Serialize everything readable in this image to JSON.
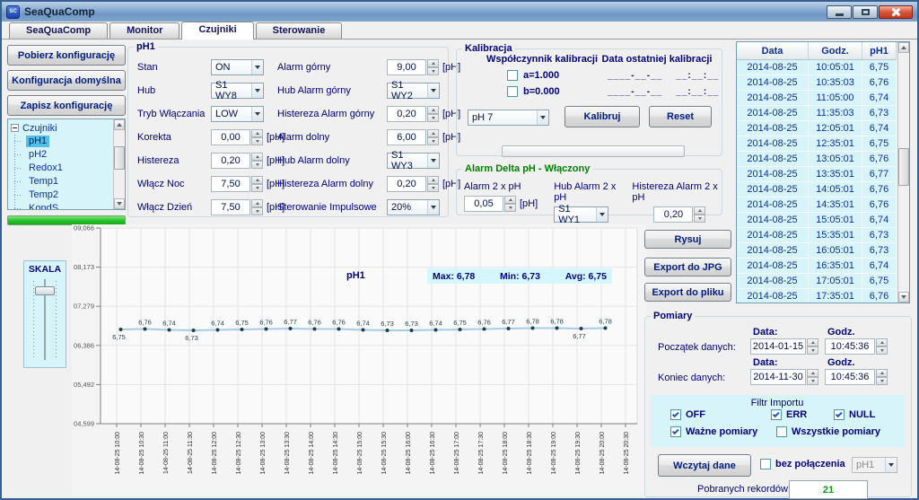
{
  "window": {
    "title": "SeaQuaComp"
  },
  "tabs": [
    {
      "label": "SeaQuaComp",
      "active": false
    },
    {
      "label": "Monitor",
      "active": false
    },
    {
      "label": "Czujniki",
      "active": true
    },
    {
      "label": "Sterowanie",
      "active": false
    }
  ],
  "sidebar": {
    "buttons": [
      {
        "label": "Pobierz konfigurację"
      },
      {
        "label": "Konfiguracja domyślna"
      },
      {
        "label": "Zapisz konfigurację"
      }
    ],
    "tree": {
      "root": "Czujniki",
      "items": [
        {
          "label": "pH1",
          "selected": true
        },
        {
          "label": "pH2",
          "selected": false
        },
        {
          "label": "Redox1",
          "selected": false
        },
        {
          "label": "Temp1",
          "selected": false
        },
        {
          "label": "Temp2",
          "selected": false
        },
        {
          "label": "KondS",
          "selected": false
        }
      ]
    }
  },
  "ph1": {
    "title": "pH1",
    "col1": [
      {
        "label": "Stan",
        "control": "select",
        "value": "ON"
      },
      {
        "label": "Hub",
        "control": "select",
        "value": "S1 WY8"
      },
      {
        "label": "Tryb Włączania",
        "control": "select",
        "value": "LOW"
      },
      {
        "label": "Korekta",
        "control": "spin",
        "value": "0,00",
        "unit": "[pH]"
      },
      {
        "label": "Histereza",
        "control": "spin",
        "value": "0,20",
        "unit": "[pH]"
      },
      {
        "label": "Włącz Noc",
        "control": "spin",
        "value": "7,50",
        "unit": "[pH]"
      },
      {
        "label": "Włącz Dzień",
        "control": "spin",
        "value": "7,50",
        "unit": "[pH]"
      }
    ],
    "col2": [
      {
        "label": "Alarm górny",
        "control": "spin",
        "value": "9,00",
        "unit": "[pH]"
      },
      {
        "label": "Hub Alarm górny",
        "control": "select",
        "value": "S1 WY2"
      },
      {
        "label": "Histereza Alarm górny",
        "control": "spin",
        "value": "0,20",
        "unit": "[pH]"
      },
      {
        "label": "Alarm dolny",
        "control": "spin",
        "value": "6,00",
        "unit": "[pH]"
      },
      {
        "label": "Hub Alarm dolny",
        "control": "select",
        "value": "S1 WY3"
      },
      {
        "label": "Histereza Alarm dolny",
        "control": "spin",
        "value": "0,20",
        "unit": "[pH]"
      },
      {
        "label": "Sterowanie Impulsowe",
        "control": "select",
        "value": "20%"
      }
    ]
  },
  "kalibracja": {
    "title": "Kalibracja",
    "coef_header": "Współczynnik kalibracji",
    "date_header": "Data ostatniej kalibracji",
    "coef_a": {
      "label": "a=1.000",
      "checked": false
    },
    "coef_b": {
      "label": "b=0.000",
      "checked": false
    },
    "date_placeholder_a": "____-__-__    __:__:__",
    "date_placeholder_b": "____-__-__    __:__:__",
    "buffer_value": "pH 7",
    "kalibruj_label": "Kalibruj",
    "reset_label": "Reset"
  },
  "delta": {
    "title": "Alarm Delta pH - Włączony",
    "fields": [
      {
        "label": "Alarm 2 x pH",
        "control": "spin",
        "value": "0,05",
        "unit": "[pH]"
      },
      {
        "label": "Hub Alarm 2 x pH",
        "control": "select",
        "value": "S1 WY1"
      },
      {
        "label": "Histereza Alarm 2 x pH",
        "control": "spin",
        "value": "0,20"
      }
    ]
  },
  "chart_buttons": [
    {
      "label": "Rysuj"
    },
    {
      "label": "Export do JPG"
    },
    {
      "label": "Export do pliku"
    }
  ],
  "skala_label": "SKALA",
  "chart_data": {
    "type": "line",
    "title": "pH1",
    "stats": [
      "Max: 6,78",
      "Min: 6,73",
      "Avg: 6,75"
    ],
    "y_ticks": [
      "09,066",
      "08,173",
      "07,279",
      "06,386",
      "05,492",
      "04,599"
    ],
    "y_max": 9.066,
    "y_min": 4.599,
    "grid": true,
    "x_ticks": [
      "14-08-25 10:00",
      "14-08-25 10:30",
      "14-08-25 11:00",
      "14-08-25 11:30",
      "14-08-25 12:00",
      "14-08-25 12:30",
      "14-08-25 13:00",
      "14-08-25 13:30",
      "14-08-25 14:00",
      "14-08-25 14:30",
      "14-08-25 15:00",
      "14-08-25 15:30",
      "14-08-25 16:00",
      "14-08-25 16:30",
      "14-08-25 17:00",
      "14-08-25 17:30",
      "14-08-25 18:00",
      "14-08-25 18:30",
      "14-08-25 19:00",
      "14-08-25 19:30",
      "14-08-25 20:00",
      "14-08-25 20:30"
    ],
    "series": [
      {
        "name": "pH1",
        "values": [
          6.75,
          6.76,
          6.74,
          6.73,
          6.74,
          6.75,
          6.76,
          6.77,
          6.76,
          6.76,
          6.74,
          6.73,
          6.73,
          6.74,
          6.75,
          6.76,
          6.77,
          6.78,
          6.78,
          6.77,
          6.78
        ],
        "point_labels": [
          "6,75",
          "6,76",
          "6,74",
          "6,73",
          "6,74",
          "6,75",
          "6,76",
          "6,77",
          "6,76",
          "6,76",
          "6,74",
          "6,73",
          "6,73",
          "6,74",
          "6,75",
          "6,76",
          "6,77",
          "6,78",
          "6,78",
          "6,77",
          "6,78"
        ],
        "labels_below": [
          0,
          3,
          19
        ]
      }
    ],
    "line_color": "#a9cae8",
    "point_color": "#1c4048"
  },
  "table": {
    "columns": [
      "Data",
      "Godz.",
      "pH1"
    ],
    "rows": [
      [
        "2014-08-25",
        "10:05:01",
        "6,75"
      ],
      [
        "2014-08-25",
        "10:35:03",
        "6,76"
      ],
      [
        "2014-08-25",
        "11:05:00",
        "6,74"
      ],
      [
        "2014-08-25",
        "11:35:03",
        "6,73"
      ],
      [
        "2014-08-25",
        "12:05:01",
        "6,74"
      ],
      [
        "2014-08-25",
        "12:35:01",
        "6,75"
      ],
      [
        "2014-08-25",
        "13:05:01",
        "6,76"
      ],
      [
        "2014-08-25",
        "13:35:01",
        "6,77"
      ],
      [
        "2014-08-25",
        "14:05:01",
        "6,76"
      ],
      [
        "2014-08-25",
        "14:35:01",
        "6,76"
      ],
      [
        "2014-08-25",
        "15:05:01",
        "6,74"
      ],
      [
        "2014-08-25",
        "15:35:01",
        "6,73"
      ],
      [
        "2014-08-25",
        "16:05:01",
        "6,73"
      ],
      [
        "2014-08-25",
        "16:35:01",
        "6,74"
      ],
      [
        "2014-08-25",
        "17:05:01",
        "6,75"
      ],
      [
        "2014-08-25",
        "17:35:01",
        "6,76"
      ]
    ]
  },
  "pomiary": {
    "title": "Pomiary",
    "data_label": "Data:",
    "godz_label": "Godz.",
    "start_label": "Początek danych:",
    "start_date": "2014-01-15",
    "start_time": "10:45:36",
    "end_label": "Koniec danych:",
    "end_date": "2014-11-30",
    "end_time": "10:45:36",
    "filter_title": "Filtr Importu",
    "filters": [
      {
        "label": "OFF",
        "checked": true
      },
      {
        "label": "ERR",
        "checked": true
      },
      {
        "label": "NULL",
        "checked": true
      },
      {
        "label": "Ważne pomiary",
        "checked": true
      },
      {
        "label": "Wszystkie pomiary",
        "checked": false
      }
    ],
    "load_button": "Wczytaj dane",
    "offline_label": "bez połączenia",
    "offline_checked": false,
    "sensor_value": "pH1",
    "records_label": "Pobranych rekordów:",
    "records_value": "21"
  },
  "colors": {
    "accent_navy": "#000080",
    "delta_title_green": "#008000",
    "panel_cyan": "#d8f4fb",
    "stats_cyan": "#d4f7fd",
    "chart_line": "#a9cae8",
    "chart_point": "#1c4048",
    "records_green": "#119c11",
    "progress_green": "#2cc42c",
    "tree_selection": "#54c0e8"
  }
}
